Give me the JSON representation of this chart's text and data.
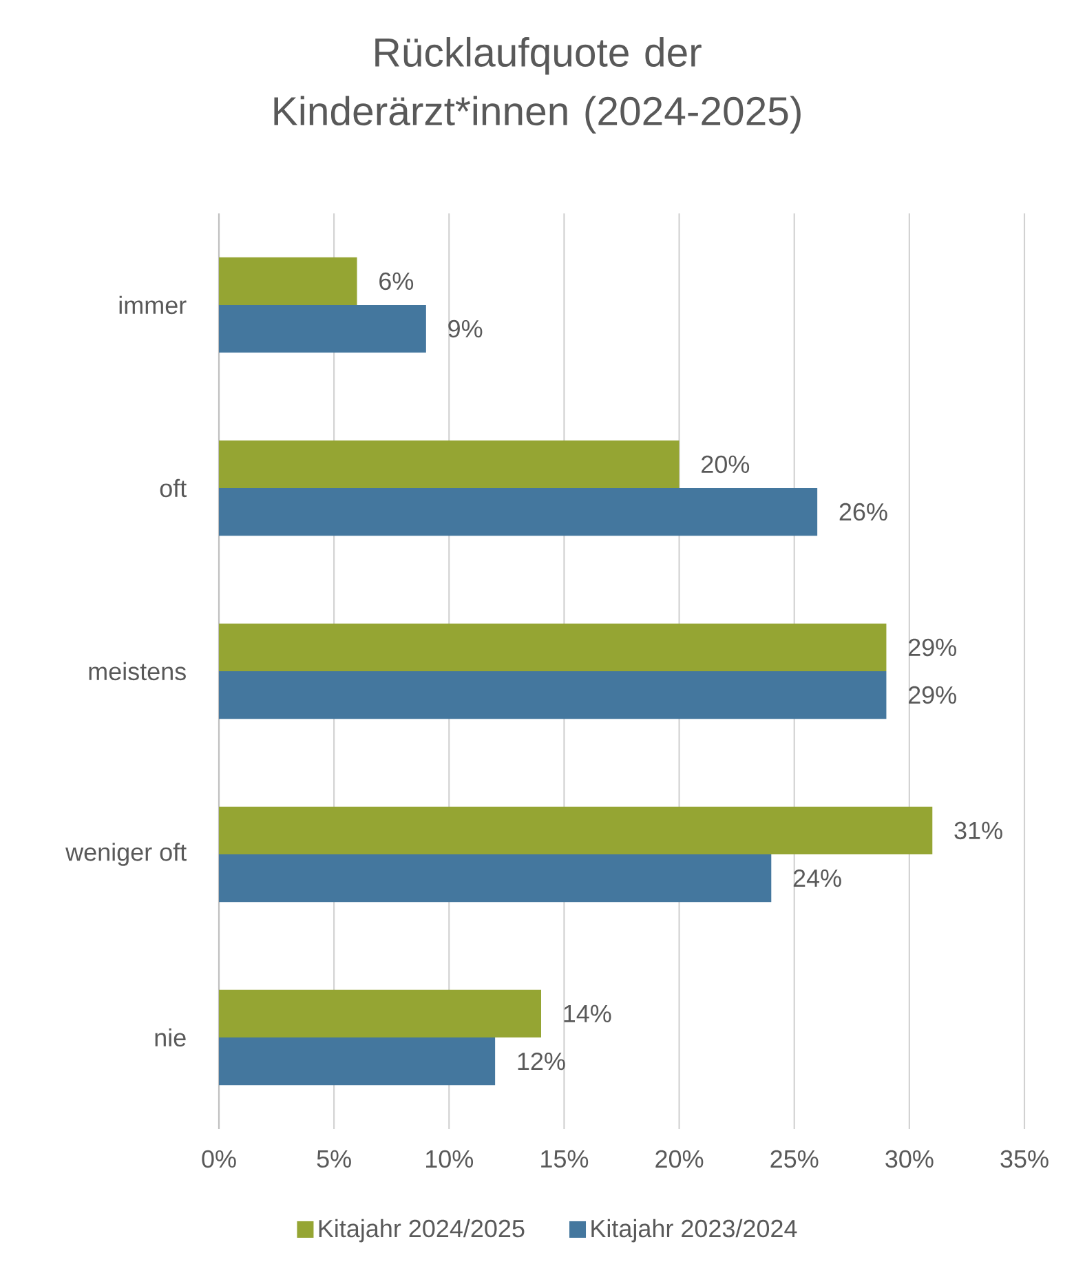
{
  "chart_data": {
    "type": "bar",
    "orientation": "horizontal",
    "title": "Rücklaufquote der Kinderärzt*innen (2024-2025)",
    "categories": [
      "immer",
      "oft",
      "meistens",
      "weniger oft",
      "nie"
    ],
    "series": [
      {
        "name": "Kitajahr 2024/2025",
        "color": "#95a533",
        "values": [
          6,
          20,
          29,
          31,
          14
        ],
        "value_labels": [
          "6%",
          "20%",
          "29%",
          "31%",
          "14%"
        ]
      },
      {
        "name": "Kitajahr 2023/2024",
        "color": "#44779e",
        "values": [
          9,
          26,
          29,
          24,
          12
        ],
        "value_labels": [
          "9%",
          "26%",
          "29%",
          "24%",
          "12%"
        ]
      }
    ],
    "xlim": [
      0,
      35
    ],
    "xticks": [
      {
        "value": 0,
        "label": "0%"
      },
      {
        "value": 5,
        "label": "5%"
      },
      {
        "value": 10,
        "label": "10%"
      },
      {
        "value": 15,
        "label": "15%"
      },
      {
        "value": 20,
        "label": "20%"
      },
      {
        "value": 25,
        "label": "25%"
      },
      {
        "value": 30,
        "label": "30%"
      },
      {
        "value": 35,
        "label": "35%"
      }
    ],
    "grid": "x",
    "legend": "bottom"
  }
}
